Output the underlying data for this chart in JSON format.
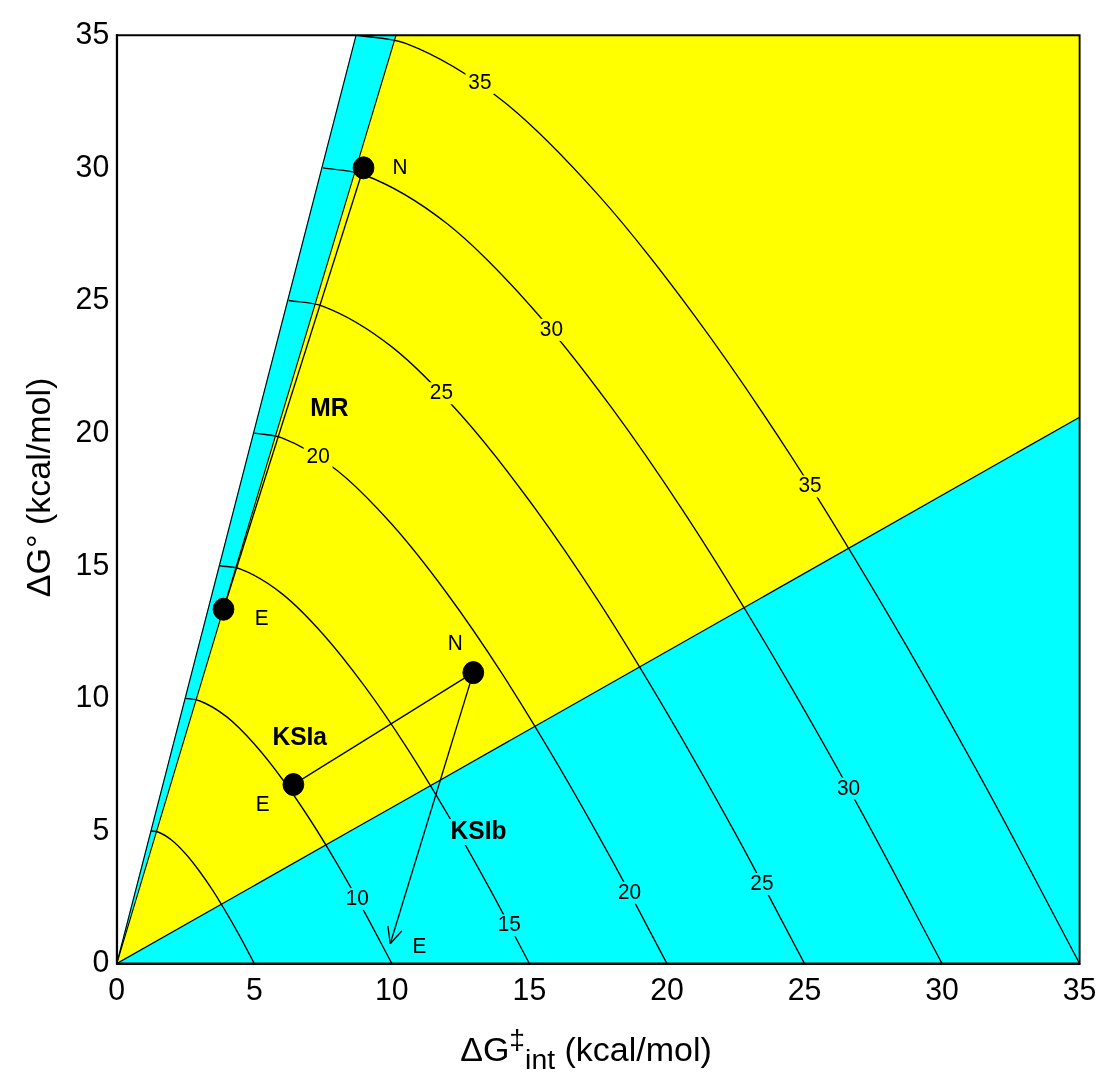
{
  "chart_data": {
    "type": "scatter",
    "xlabel": "ΔG$^{‡}$$_{int}$ (kcal/mol)",
    "ylabel": "ΔG° (kcal/mol)",
    "xlim": [
      0,
      35
    ],
    "ylim": [
      0,
      35
    ],
    "xticks": [
      0,
      5,
      10,
      15,
      20,
      25,
      30,
      35
    ],
    "yticks": [
      0,
      5,
      10,
      15,
      20,
      25,
      30,
      35
    ],
    "grid": false,
    "legend": false,
    "series": [
      {
        "color": "#000000",
        "marker": "circle",
        "x": [
          8.97,
          3.88,
          12.96,
          6.42
        ],
        "values": [
          30,
          13.36,
          10.97,
          6.75
        ]
      },
      {
        "type": "line",
        "color": "#000000",
        "x": [
          12.96,
          9.94
        ],
        "values": [
          10.97,
          0.75
        ]
      },
      {
        "type": "line",
        "color": "#000000",
        "x": [
          6.42,
          12.96
        ],
        "values": [
          6.75,
          10.97
        ]
      },
      {
        "type": "line",
        "color": "#000000",
        "x": [
          8.97,
          3.88
        ],
        "values": [
          30,
          13.36
        ]
      },
      {
        "type": "line",
        "color": "#000000",
        "x": [
          8.75,
          10.5,
          14,
          17.5,
          21,
          24.5,
          28,
          31.5,
          35
        ],
        "values": [
          35,
          34.69,
          32.55,
          28.98,
          24.43,
          19.15,
          13.23,
          6.83,
          0
        ]
      },
      {
        "type": "line",
        "color": "#000000",
        "x": [
          7.5,
          9,
          12,
          15,
          18,
          21,
          24,
          27,
          30
        ],
        "values": [
          30,
          29.73,
          27.9,
          24.84,
          20.94,
          16.41,
          11.34,
          5.85,
          0
        ]
      },
      {
        "type": "line",
        "color": "#000000",
        "x": [
          6.25,
          7.5,
          10,
          12.5,
          15,
          17.5,
          20,
          22.5,
          25
        ],
        "values": [
          25,
          24.78,
          23.25,
          20.7,
          17.45,
          13.68,
          9.45,
          4.88,
          0
        ]
      },
      {
        "type": "line",
        "color": "#000000",
        "x": [
          5,
          6,
          8,
          10,
          12,
          14,
          16,
          18,
          20
        ],
        "values": [
          20,
          19.82,
          18.6,
          16.56,
          13.96,
          10.94,
          7.56,
          3.9,
          0
        ]
      },
      {
        "type": "line",
        "color": "#000000",
        "x": [
          3.75,
          4.5,
          6,
          7.5,
          9,
          10.5,
          12,
          13.5,
          15
        ],
        "values": [
          15,
          14.87,
          13.95,
          12.42,
          10.47,
          8.21,
          5.67,
          2.93,
          0
        ]
      },
      {
        "type": "line",
        "color": "#000000",
        "x": [
          2.5,
          3,
          4,
          5,
          6,
          7,
          8,
          9,
          10
        ],
        "values": [
          10,
          9.91,
          9.3,
          8.28,
          6.98,
          5.47,
          3.78,
          1.95,
          0
        ]
      },
      {
        "type": "line",
        "color": "#000000",
        "x": [
          1.25,
          1.5,
          2,
          2.5,
          3,
          3.5,
          4,
          4.5,
          5
        ],
        "values": [
          5,
          4.96,
          4.65,
          4.14,
          3.49,
          2.74,
          1.89,
          0.98,
          0
        ]
      },
      {
        "type": "area",
        "color": "#00ffff",
        "x": [
          0,
          8.7,
          10.15,
          35
        ],
        "values": [
          0,
          5.12,
          5.97,
          20.6
        ]
      },
      {
        "type": "area",
        "color": "#ffff00",
        "x": [
          0,
          8.7,
          10.15,
          35
        ],
        "values": [
          0,
          24.88,
          29.03,
          14.4
        ]
      },
      {
        "type": "area",
        "color": "#00ffff",
        "x": [
          0,
          8.7,
          10.15
        ],
        "values": [
          0,
          5,
          0
        ]
      }
    ],
    "stacked": true,
    "annotations": [
      "N",
      "E",
      "N",
      "E",
      "E",
      "MR",
      "KSIa",
      "KSIb",
      {
        "text": "10",
        "x": 8.74,
        "y": 2.44
      },
      {
        "text": "15",
        "x": 14.27,
        "y": 1.44
      },
      {
        "text": "20",
        "x": 18.64,
        "y": 2.67
      },
      {
        "text": "25",
        "x": 23.45,
        "y": 3
      },
      {
        "text": "30",
        "x": 26.6,
        "y": 6.6
      },
      {
        "text": "35",
        "x": 25.2,
        "y": 17.99
      },
      {
        "text": "30",
        "x": 15.8,
        "y": 23.89
      },
      {
        "text": "25",
        "x": 11.8,
        "y": 21.5
      },
      {
        "text": "20",
        "x": 7.32,
        "y": 19.1
      },
      {
        "text": "35",
        "x": 13.2,
        "y": 33.2
      }
    ]
  }
}
